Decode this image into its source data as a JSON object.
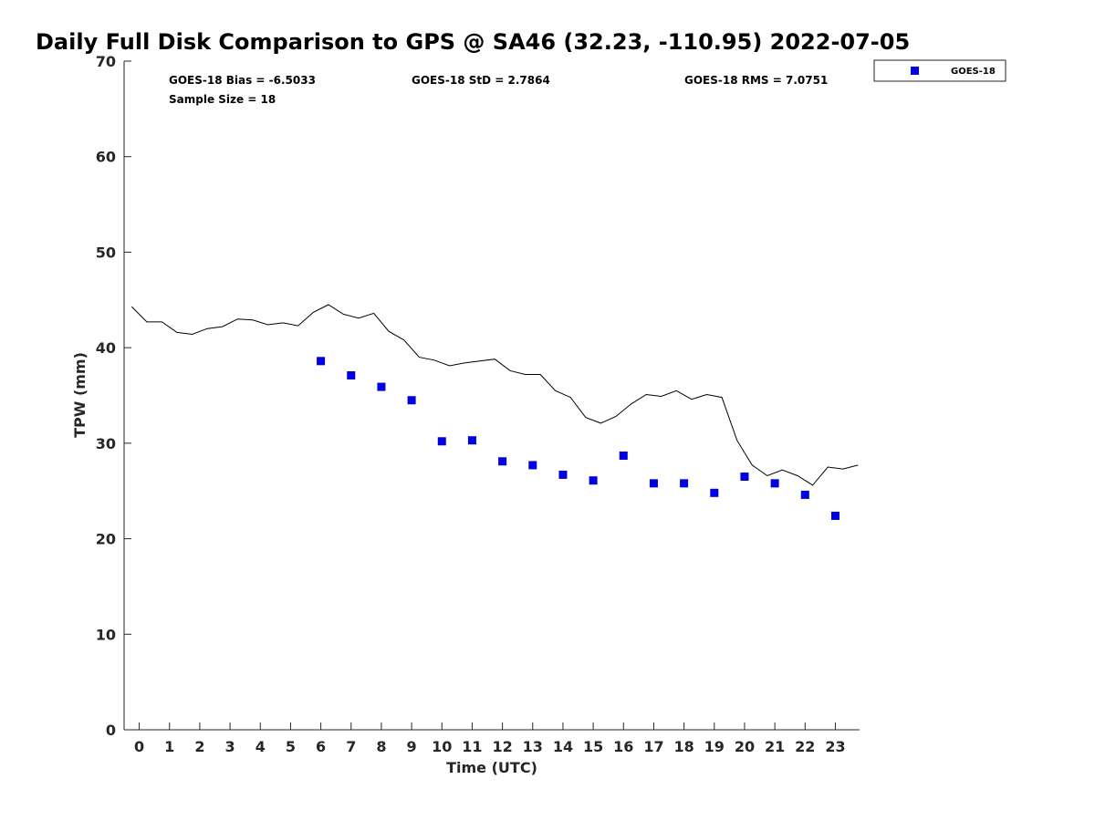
{
  "chart_data": {
    "type": "scatter",
    "title": "Daily Full Disk Comparison to GPS @ SA46 (32.23, -110.95) 2022-07-05",
    "xlabel": "Time (UTC)",
    "ylabel": "TPW (mm)",
    "xlim": [
      -0.5,
      23.8
    ],
    "ylim": [
      0,
      70
    ],
    "x_ticks": [
      0,
      1,
      2,
      3,
      4,
      5,
      6,
      7,
      8,
      9,
      10,
      11,
      12,
      13,
      14,
      15,
      16,
      17,
      18,
      19,
      20,
      21,
      22,
      23
    ],
    "y_ticks": [
      0,
      10,
      20,
      30,
      40,
      50,
      60,
      70
    ],
    "grid": false,
    "legend_position": "top-right (outside plot)",
    "stats": {
      "bias": "GOES-18 Bias = -6.5033",
      "std": "GOES-18 StD = 2.7864",
      "rms": "GOES-18 RMS = 7.0751",
      "sample": "Sample Size = 18"
    },
    "series": [
      {
        "name": "GOES-18",
        "kind": "scatter",
        "marker": "square",
        "color": "#0000e0",
        "x": [
          6,
          7,
          8,
          9,
          10,
          11,
          12,
          13,
          14,
          15,
          16,
          17,
          18,
          19,
          20,
          21,
          22,
          23
        ],
        "y": [
          38.6,
          37.1,
          35.9,
          34.5,
          30.2,
          30.3,
          28.1,
          27.7,
          26.7,
          26.1,
          28.7,
          25.8,
          25.8,
          24.8,
          26.5,
          25.8,
          24.6,
          22.4
        ]
      },
      {
        "kind": "line",
        "color": "#000000",
        "x": [
          -0.25,
          0.25,
          0.75,
          1.25,
          1.75,
          2.25,
          2.75,
          3.25,
          3.75,
          4.25,
          4.75,
          5.25,
          5.75,
          6.25,
          6.75,
          7.25,
          7.75,
          8.25,
          8.75,
          9.25,
          9.75,
          10.25,
          10.75,
          11.25,
          11.75,
          12.25,
          12.75,
          13.25,
          13.75,
          14.25,
          14.75,
          15.25,
          15.75,
          16.25,
          16.75,
          17.25,
          17.75,
          18.25,
          18.75,
          19.25,
          19.75,
          20.25,
          20.75,
          21.25,
          21.75,
          22.25,
          22.75,
          23.25,
          23.75
        ],
        "y": [
          44.3,
          42.7,
          42.7,
          41.6,
          41.4,
          42.0,
          42.2,
          43.0,
          42.9,
          42.4,
          42.6,
          42.3,
          43.7,
          44.5,
          43.5,
          43.1,
          43.6,
          41.7,
          40.8,
          39.0,
          38.7,
          38.1,
          38.4,
          38.6,
          38.8,
          37.6,
          37.2,
          37.2,
          35.5,
          34.8,
          32.7,
          32.1,
          32.8,
          34.1,
          35.1,
          34.9,
          35.5,
          34.6,
          35.1,
          34.8,
          30.3,
          27.7,
          26.6,
          27.2,
          26.6,
          25.6,
          27.5,
          27.3,
          27.7
        ]
      }
    ]
  }
}
